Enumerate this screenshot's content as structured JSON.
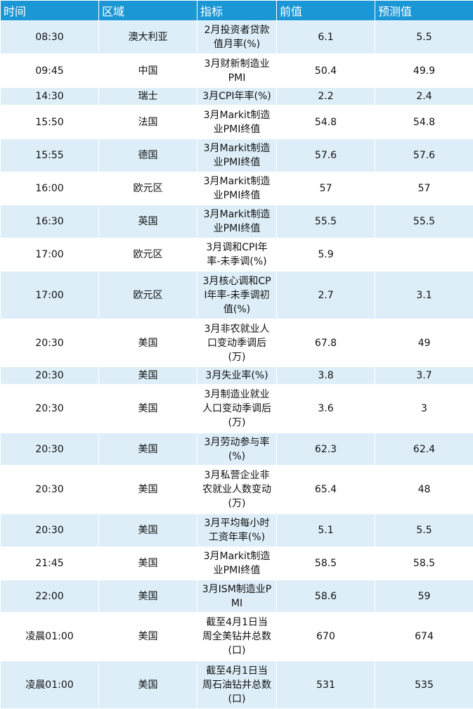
{
  "table": {
    "header": [
      "时间",
      "区域",
      "指标",
      "前值",
      "预测值"
    ],
    "rows": [
      [
        "08:30",
        "澳大利亚",
        "2月投资者贷款值月率(%)",
        "6.1",
        "5.5"
      ],
      [
        "09:45",
        "中国",
        "3月财新制造业PMI",
        "50.4",
        "49.9"
      ],
      [
        "14:30",
        "瑞士",
        "3月CPI年率(%)",
        "2.2",
        "2.4"
      ],
      [
        "15:50",
        "法国",
        "3月Markit制造业PMI终值",
        "54.8",
        "54.8"
      ],
      [
        "15:55",
        "德国",
        "3月Markit制造业PMI终值",
        "57.6",
        "57.6"
      ],
      [
        "16:00",
        "欧元区",
        "3月Markit制造业PMI终值",
        "57",
        "57"
      ],
      [
        "16:30",
        "英国",
        "3月Markit制造业PMI终值",
        "55.5",
        "55.5"
      ],
      [
        "17:00",
        "欧元区",
        "3月调和CPI年率-未季调(%)",
        "5.9",
        null
      ],
      [
        "17:00",
        "欧元区",
        "3月核心调和CPI年率-未季调初值(%)",
        "2.7",
        "3.1"
      ],
      [
        "20:30",
        "美国",
        "3月非农就业人口变动季调后(万)",
        "67.8",
        "49"
      ],
      [
        "20:30",
        "美国",
        "3月失业率(%)",
        "3.8",
        "3.7"
      ],
      [
        "20:30",
        "美国",
        "3月制造业就业人口变动季调后(万)",
        "3.6",
        "3"
      ],
      [
        "20:30",
        "美国",
        "3月劳动参与率(%)",
        "62.3",
        "62.4"
      ],
      [
        "20:30",
        "美国",
        "3月私营企业非农就业人数变动(万)",
        "65.4",
        "48"
      ],
      [
        "20:30",
        "美国",
        "3月平均每小时工资年率(%)",
        "5.1",
        "5.5"
      ],
      [
        "21:45",
        "美国",
        "3月Markit制造业PMI终值",
        "58.5",
        "58.5"
      ],
      [
        "22:00",
        "美国",
        "3月ISM制造业PMI",
        "58.6",
        "59"
      ],
      [
        "凌晨01:00",
        "美国",
        "截至4月1日当周全美钻井总数(口)",
        "670",
        "674"
      ],
      [
        "凌晨01:00",
        "美国",
        "截至4月1日当周石油钻井总数(口)",
        "531",
        "535"
      ]
    ]
  }
}
